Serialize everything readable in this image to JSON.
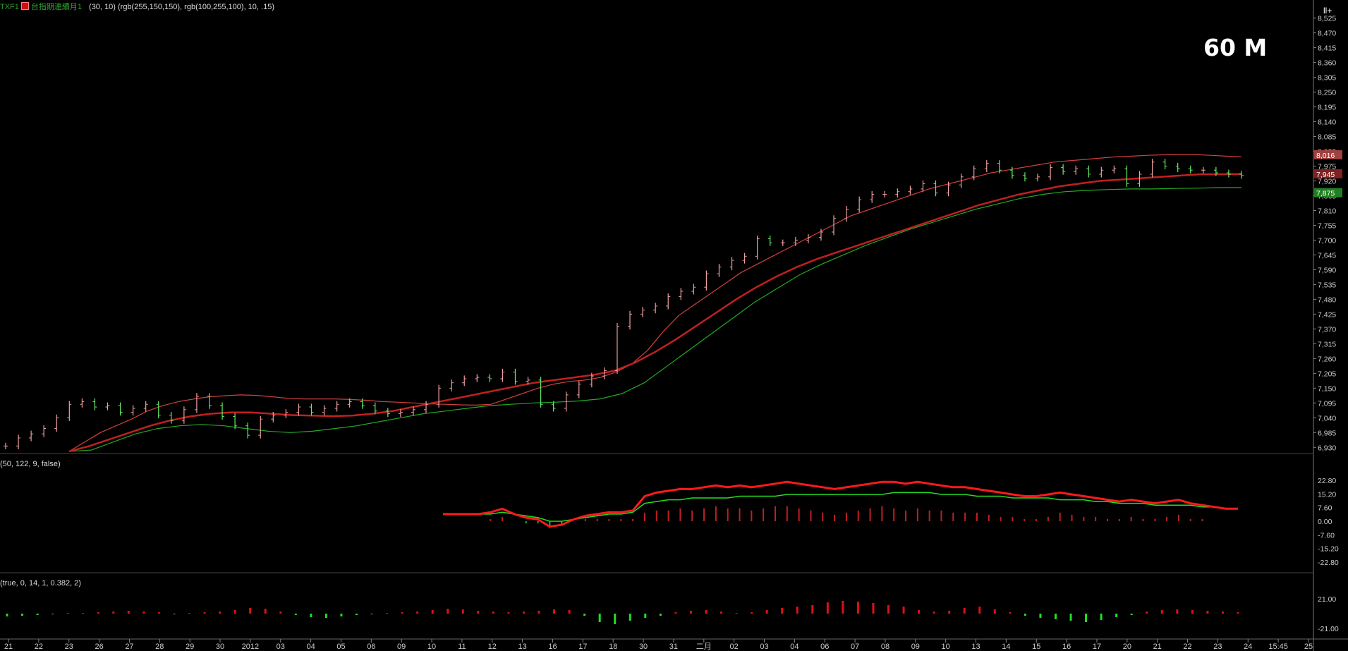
{
  "header": {
    "symbol": "TXF1",
    "series_name": "台指期連續月1",
    "params": "(30,  10)  (rgb(255,150,150),  rgb(100,255,100),  10,  .15)"
  },
  "timeframe_label": "60 M",
  "corner_button": "ll+",
  "panels": {
    "macd_params": "(50,  122,  9,  false)",
    "osc_params": "(true,  0,  14,  1,  0.382,  2)"
  },
  "colors": {
    "background": "#000000",
    "up_bar": "#f0a0a0",
    "down_bar": "#66ee66",
    "upper_band": "#d04040",
    "lower_band": "#22aa22",
    "mid_band": "#c02020",
    "macd_line": "#ff1a1a",
    "signal_line": "#22dd22"
  },
  "chart_data": [
    {
      "type": "line",
      "title": "",
      "x_tick_labels": [
        "21",
        "22",
        "23",
        "26",
        "27",
        "28",
        "29",
        "30",
        "2012",
        "03",
        "04",
        "05",
        "06",
        "09",
        "10",
        "11",
        "12",
        "13",
        "16",
        "17",
        "18",
        "30",
        "31",
        "二月",
        "02",
        "03",
        "04",
        "06",
        "07",
        "08",
        "09",
        "10",
        "13",
        "14",
        "15",
        "16",
        "17",
        "20",
        "21",
        "22",
        "23",
        "24",
        "15:45",
        "25"
      ],
      "y_tick_labels": [
        "8,525",
        "8,470",
        "8,415",
        "8,360",
        "8,305",
        "8,250",
        "8,195",
        "8,140",
        "8,085",
        "8,030",
        "7,975",
        "7,920",
        "7,865",
        "7,810",
        "7,755",
        "7,700",
        "7,645",
        "7,590",
        "7,535",
        "7,480",
        "7,425",
        "7,370",
        "7,315",
        "7,260",
        "7,205",
        "7,150",
        "7,095",
        "7,040",
        "6,985",
        "6,930"
      ],
      "ylim": [
        6915,
        8545
      ],
      "x_count": 43,
      "price": [
        6935,
        6965,
        6980,
        7000,
        7040,
        7090,
        7100,
        7080,
        7085,
        7060,
        7075,
        7090,
        7050,
        7030,
        7070,
        7120,
        7085,
        7045,
        7010,
        6975,
        7035,
        7050,
        7060,
        7080,
        7060,
        7075,
        7090,
        7100,
        7085,
        7065,
        7055,
        7060,
        7070,
        7090,
        7150,
        7170,
        7185,
        7190,
        7185,
        7210,
        7175,
        7180,
        7090,
        7075,
        7125,
        7165,
        7195,
        7215,
        7380,
        7425,
        7440,
        7455,
        7490,
        7510,
        7525,
        7575,
        7600,
        7625,
        7640,
        7705,
        7690,
        7690,
        7700,
        7710,
        7730,
        7780,
        7815,
        7850,
        7870,
        7870,
        7880,
        7890,
        7910,
        7875,
        7905,
        7935,
        7965,
        7985,
        7960,
        7940,
        7930,
        7935,
        7970,
        7955,
        7965,
        7945,
        7960,
        7965,
        7910,
        7945,
        7990,
        7975,
        7965,
        7960,
        7960,
        7950,
        7945,
        7940
      ],
      "upper_band": [
        6915,
        6950,
        6985,
        7010,
        7035,
        7065,
        7085,
        7100,
        7110,
        7118,
        7122,
        7125,
        7123,
        7118,
        7112,
        7110,
        7110,
        7110,
        7108,
        7105,
        7100,
        7098,
        7095,
        7092,
        7090,
        7088,
        7087,
        7090,
        7110,
        7130,
        7150,
        7165,
        7175,
        7180,
        7190,
        7210,
        7240,
        7290,
        7360,
        7420,
        7460,
        7500,
        7540,
        7580,
        7610,
        7640,
        7670,
        7700,
        7730,
        7760,
        7790,
        7810,
        7830,
        7850,
        7870,
        7890,
        7905,
        7920,
        7935,
        7950,
        7960,
        7970,
        7980,
        7990,
        7995,
        8000,
        8005,
        8010,
        8012,
        8015,
        8017,
        8018,
        8018,
        8015,
        8012,
        8010
      ],
      "mid_band": [
        6915,
        6935,
        6960,
        6985,
        7010,
        7030,
        7045,
        7055,
        7060,
        7060,
        7055,
        7050,
        7048,
        7046,
        7048,
        7055,
        7065,
        7080,
        7095,
        7110,
        7125,
        7140,
        7155,
        7170,
        7180,
        7190,
        7200,
        7215,
        7245,
        7285,
        7330,
        7380,
        7430,
        7480,
        7525,
        7565,
        7600,
        7630,
        7655,
        7680,
        7705,
        7730,
        7755,
        7780,
        7805,
        7830,
        7850,
        7870,
        7885,
        7900,
        7910,
        7920,
        7925,
        7930,
        7935,
        7940,
        7945,
        7945,
        7946
      ],
      "lower_band": [
        6915,
        6920,
        6950,
        6980,
        7000,
        7010,
        7015,
        7010,
        7000,
        6990,
        6985,
        6990,
        7000,
        7010,
        7025,
        7040,
        7055,
        7065,
        7075,
        7085,
        7090,
        7095,
        7098,
        7102,
        7110,
        7130,
        7170,
        7230,
        7290,
        7350,
        7410,
        7470,
        7520,
        7570,
        7610,
        7645,
        7680,
        7710,
        7740,
        7765,
        7790,
        7815,
        7835,
        7855,
        7870,
        7880,
        7885,
        7888,
        7890,
        7890,
        7892,
        7893,
        7895,
        7895
      ],
      "price_tags": [
        "8,016",
        "7,945",
        "7,875"
      ]
    },
    {
      "type": "line",
      "title": "",
      "y_tick_labels": [
        "22.80",
        "15.20",
        "7.60",
        "0.00",
        "-7.60",
        "-15.20",
        "-22.80"
      ],
      "ylim": [
        -28,
        28
      ],
      "series": [
        {
          "values": [
            4,
            4,
            4,
            4,
            5,
            7,
            4,
            2,
            1,
            -3,
            -2,
            1,
            3,
            4,
            5,
            5,
            6,
            14,
            16,
            17,
            18,
            18,
            19,
            20,
            19,
            20,
            19,
            20,
            21,
            22,
            21,
            20,
            19,
            18,
            19,
            20,
            21,
            22,
            22,
            21,
            22,
            21,
            20,
            19,
            19,
            18,
            17,
            16,
            15,
            14,
            14,
            15,
            16,
            15,
            14,
            13,
            12,
            11,
            12,
            11,
            10,
            11,
            12,
            10,
            9,
            8,
            7,
            7
          ]
        },
        {
          "values": [
            4,
            4,
            4,
            4,
            4,
            5,
            4,
            3,
            2,
            0,
            0,
            1,
            2,
            3,
            4,
            4,
            5,
            10,
            11,
            12,
            12,
            13,
            13,
            13,
            13,
            14,
            14,
            14,
            14,
            15,
            15,
            15,
            15,
            15,
            15,
            15,
            15,
            15,
            16,
            16,
            16,
            16,
            15,
            15,
            15,
            14,
            14,
            14,
            13,
            13,
            13,
            13,
            12,
            12,
            12,
            11,
            11,
            10,
            10,
            10,
            9,
            9,
            9,
            9,
            8,
            8,
            7,
            7
          ]
        }
      ]
    },
    {
      "type": "bar",
      "title": "",
      "y_tick_labels": [
        "21.00",
        "-21.00"
      ],
      "ylim": [
        -35,
        35
      ],
      "values": [
        -4,
        -3,
        -2,
        -1,
        1,
        1,
        2,
        3,
        4,
        3,
        2,
        -1,
        1,
        2,
        3,
        5,
        8,
        7,
        3,
        -2,
        -5,
        -6,
        -4,
        -2,
        -1,
        1,
        2,
        3,
        5,
        7,
        6,
        4,
        3,
        2,
        3,
        4,
        6,
        5,
        -3,
        -12,
        -15,
        -10,
        -6,
        -3,
        2,
        4,
        5,
        3,
        1,
        2,
        5,
        8,
        10,
        12,
        16,
        18,
        17,
        15,
        12,
        10,
        5,
        3,
        4,
        8,
        10,
        6,
        2,
        -3,
        -6,
        -8,
        -10,
        -12,
        -9,
        -5,
        -2,
        3,
        5,
        6,
        5,
        4,
        3,
        2
      ]
    }
  ]
}
